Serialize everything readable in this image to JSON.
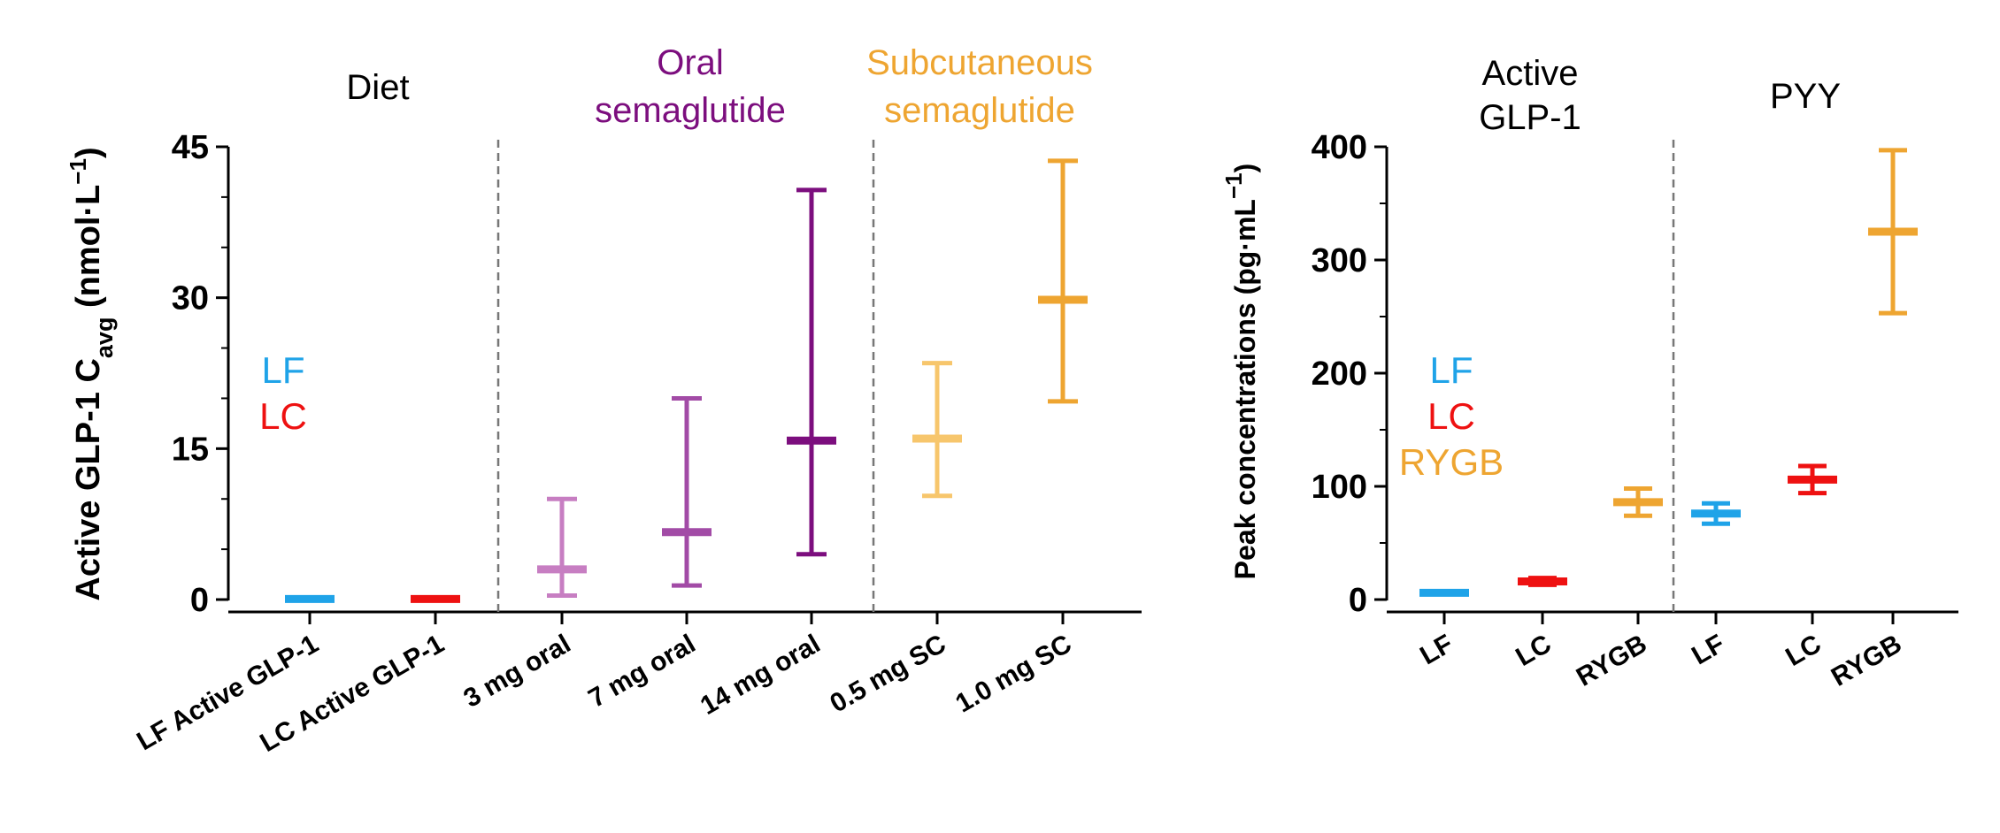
{
  "colors": {
    "lf": "#1fa3e8",
    "lc": "#ee1111",
    "rygb": "#eea531",
    "oral_light": "#c77ec2",
    "oral_mid": "#a24ba6",
    "oral_dark": "#7c0e7e",
    "sc_light": "#f7c66c",
    "sc_dark": "#eea531",
    "axis": "#000000",
    "divider": "#777777",
    "diet_label": "#000000",
    "oral_label": "#7c0e7e",
    "sc_label": "#eea531"
  },
  "chart_data": [
    {
      "type": "errorbar",
      "ylabel_main": "Active GLP-1 C",
      "ylabel_sub": "avg",
      "ylabel_unit": " (nmol·L",
      "ylabel_exp": "−1",
      "ylabel_end": ")",
      "ylim": [
        0,
        45
      ],
      "yticks": [
        0,
        15,
        30,
        45
      ],
      "group_labels": [
        {
          "lines": [
            "Diet"
          ],
          "color": "#000000"
        },
        {
          "lines": [
            "Oral",
            "semaglutide"
          ],
          "color": "#7c0e7e"
        },
        {
          "lines": [
            "Subcutaneous",
            "semaglutide"
          ],
          "color": "#eea531"
        }
      ],
      "legend": [
        {
          "label": "LF",
          "color": "#1fa3e8"
        },
        {
          "label": "LC",
          "color": "#ee1111"
        }
      ],
      "categories": [
        "LF Active GLP-1",
        "LC Active GLP-1",
        "3 mg oral",
        "7 mg oral",
        "14 mg oral",
        "0.5 mg SC",
        "1.0 mg SC"
      ],
      "points": [
        {
          "category": "LF Active GLP-1",
          "mean": 0.05,
          "low": 0.0,
          "high": 0.1,
          "color": "#1fa3e8"
        },
        {
          "category": "LC Active GLP-1",
          "mean": 0.05,
          "low": 0.0,
          "high": 0.1,
          "color": "#ee1111"
        },
        {
          "category": "3 mg oral",
          "mean": 3.0,
          "low": 0.4,
          "high": 10.0,
          "color": "#c77ec2"
        },
        {
          "category": "7 mg oral",
          "mean": 6.7,
          "low": 1.4,
          "high": 20.0,
          "color": "#a24ba6"
        },
        {
          "category": "14 mg oral",
          "mean": 15.8,
          "low": 4.5,
          "high": 40.7,
          "color": "#7c0e7e"
        },
        {
          "category": "0.5 mg SC",
          "mean": 16.0,
          "low": 10.3,
          "high": 23.5,
          "color": "#f7c66c"
        },
        {
          "category": "1.0 mg SC",
          "mean": 29.8,
          "low": 19.7,
          "high": 43.6,
          "color": "#eea531"
        }
      ]
    },
    {
      "type": "errorbar",
      "ylabel_main": "Peak concentrations (pg·mL",
      "ylabel_exp": "−1",
      "ylabel_end": ")",
      "ylim": [
        0,
        400
      ],
      "yticks": [
        0,
        100,
        200,
        300,
        400
      ],
      "group_labels": [
        {
          "lines": [
            "Active",
            "GLP-1"
          ],
          "color": "#000000"
        },
        {
          "lines": [
            "PYY"
          ],
          "color": "#000000"
        }
      ],
      "legend": [
        {
          "label": "LF",
          "color": "#1fa3e8"
        },
        {
          "label": "LC",
          "color": "#ee1111"
        },
        {
          "label": "RYGB",
          "color": "#eea531"
        }
      ],
      "categories": [
        "LF",
        "LC",
        "RYGB",
        "LF",
        "LC",
        "RYGB"
      ],
      "points": [
        {
          "category": "LF",
          "group": "Active GLP-1",
          "mean": 6,
          "low": 5,
          "high": 7,
          "color": "#1fa3e8"
        },
        {
          "category": "LC",
          "group": "Active GLP-1",
          "mean": 16,
          "low": 13,
          "high": 19,
          "color": "#ee1111"
        },
        {
          "category": "RYGB",
          "group": "Active GLP-1",
          "mean": 86,
          "low": 74,
          "high": 98,
          "color": "#eea531"
        },
        {
          "category": "LF",
          "group": "PYY",
          "mean": 76,
          "low": 67,
          "high": 85,
          "color": "#1fa3e8"
        },
        {
          "category": "LC",
          "group": "PYY",
          "mean": 106,
          "low": 94,
          "high": 118,
          "color": "#ee1111"
        },
        {
          "category": "RYGB",
          "group": "PYY",
          "mean": 325,
          "low": 253,
          "high": 397,
          "color": "#eea531"
        }
      ]
    }
  ]
}
